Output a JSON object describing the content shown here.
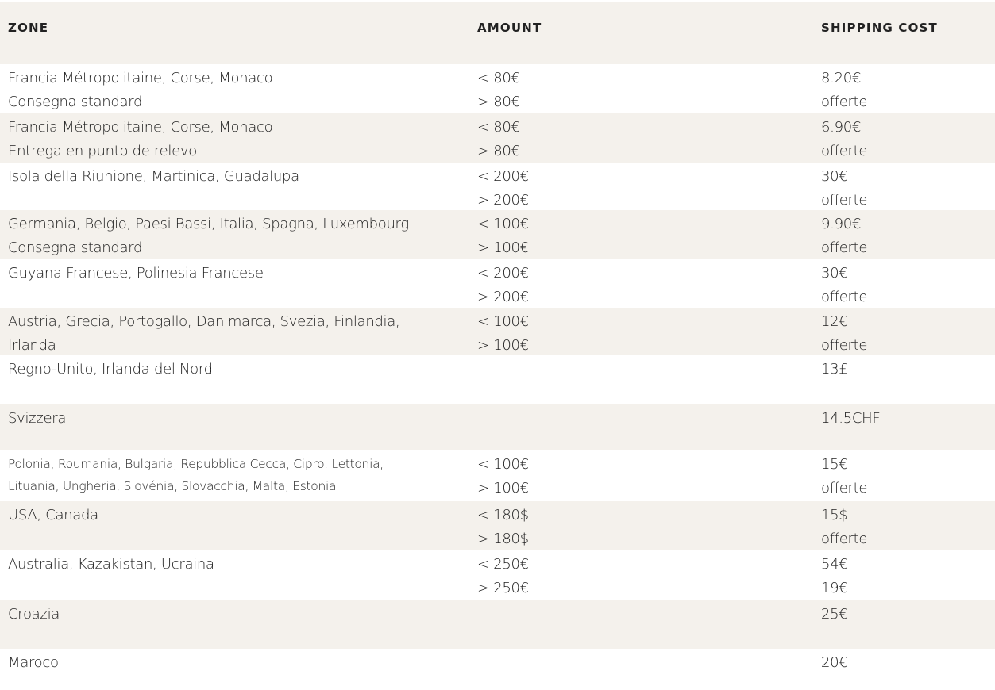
{
  "table": {
    "header": [
      "ZONE",
      "AMOUNT",
      "SHIPPING COST"
    ],
    "rows": [
      {
        "zone": [
          "Francia Métropolitaine, Corse, Monaco",
          "Consegna standard"
        ],
        "amount": [
          "< 80€",
          "> 80€"
        ],
        "cost": [
          "8.20€",
          "offerte"
        ]
      },
      {
        "zone": [
          "Francia Métropolitaine, Corse, Monaco",
          "Entrega en punto de relevo"
        ],
        "amount": [
          "< 80€",
          "> 80€"
        ],
        "cost": [
          "6.90€",
          "offerte"
        ]
      },
      {
        "zone": [
          "Isola della Riunione, Martinica, Guadalupa"
        ],
        "amount": [
          "< 200€",
          "> 200€"
        ],
        "cost": [
          "30€",
          "offerte"
        ]
      },
      {
        "zone": [
          "Germania, Belgio, Paesi Bassi, Italia, Spagna, Luxembourg",
          "Consegna standard"
        ],
        "amount": [
          "< 100€",
          "> 100€"
        ],
        "cost": [
          "9.90€",
          "offerte"
        ]
      },
      {
        "zone": [
          "Guyana Francese, Polinesia Francese"
        ],
        "amount": [
          "< 200€",
          "> 200€"
        ],
        "cost": [
          "30€",
          "offerte"
        ]
      },
      {
        "zone": [
          "Austria, Grecia, Portogallo, Danimarca, Svezia, Finlandia,",
          "Irlanda"
        ],
        "amount": [
          "< 100€",
          "> 100€"
        ],
        "cost": [
          "12€",
          "offerte"
        ]
      },
      {
        "zone": [
          "Regno-Unito, Irlanda del Nord"
        ],
        "cost": [
          "13£"
        ]
      },
      {
        "zone": [
          "Svizzera"
        ],
        "cost": [
          "14.5CHF"
        ]
      },
      {
        "zone": [
          "Polonia, Roumania, Bulgaria, Repubblica Cecca, Cipro, Lettonia,",
          "Lituania, Ungheria, Slovénia, Slovacchia, Malta, Estonia"
        ],
        "amount": [
          "< 100€",
          "> 100€"
        ],
        "cost": [
          "15€",
          "offerte"
        ]
      },
      {
        "zone": [
          "USA, Canada"
        ],
        "amount": [
          "< 180$",
          "> 180$"
        ],
        "cost": [
          "15$",
          "offerte"
        ]
      },
      {
        "zone": [
          "Australia, Kazakistan, Ucraina"
        ],
        "amount": [
          "< 250€",
          "> 250€"
        ],
        "cost": [
          "54€",
          "19€"
        ]
      },
      {
        "zone": [
          "Croazia"
        ],
        "cost": [
          "25€"
        ]
      },
      {
        "zone": [
          "Maroco"
        ],
        "cost": [
          "20€"
        ]
      }
    ]
  }
}
